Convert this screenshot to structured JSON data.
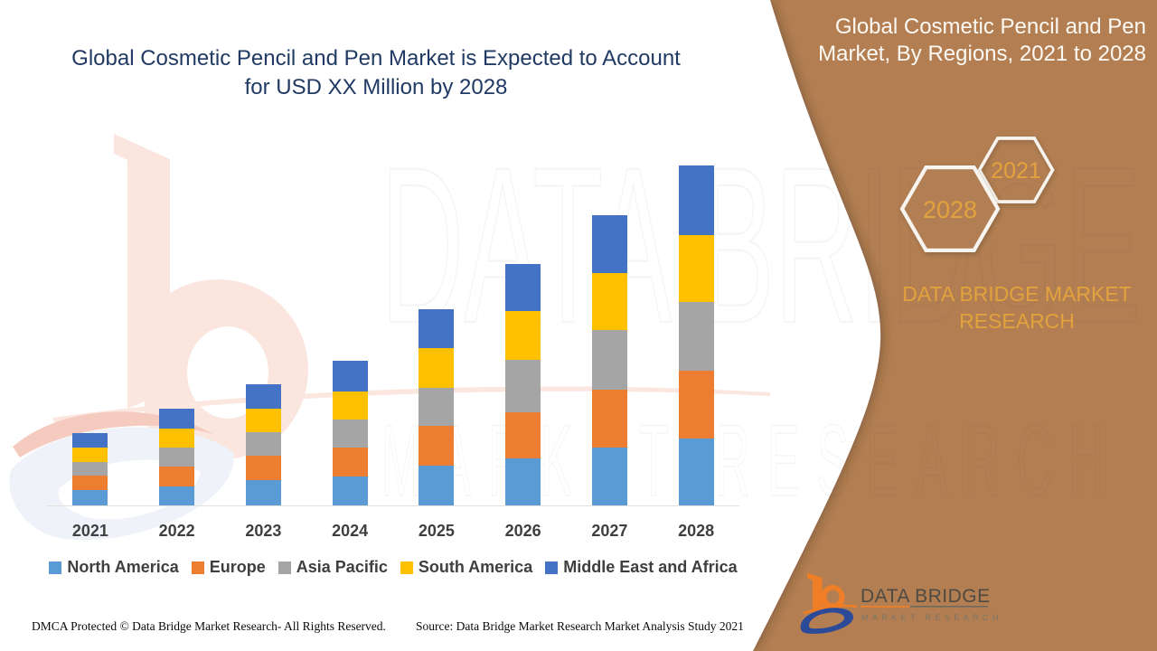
{
  "colors": {
    "panel_brown": "#B27E52",
    "title_blue": "#203A63",
    "gold": "#E2A23D",
    "axis_line": "#E3E0DD",
    "tick_text": "#3F3F3F",
    "logo_orange": "#F07E26",
    "logo_blue": "#2A4C9B"
  },
  "left_title": {
    "line1": "Global Cosmetic Pencil and Pen Market is Expected to Account",
    "line2": "for USD XX Million by 2028"
  },
  "panel": {
    "title_line1": "Global Cosmetic Pencil and Pen",
    "title_line2": "Market, By Regions, 2021 to 2028",
    "hexagon_back_label": "2021",
    "hexagon_front_label": "2028",
    "brand_line1": "DATA BRIDGE MARKET",
    "brand_line2": "RESEARCH"
  },
  "logo": {
    "name": "DATA BRIDGE",
    "tagline": "MARKET RESEARCH"
  },
  "watermark": {
    "row1": "DATA BRIDGE",
    "row2": "MARKET RESEARCH"
  },
  "footer": {
    "left": "DMCA Protected © Data Bridge Market Research- All Rights Reserved.",
    "right": "Source: Data Bridge Market Research Market Analysis Study 2021"
  },
  "chart_data": {
    "type": "bar",
    "stacked": true,
    "title": "Global Cosmetic Pencil and Pen Market, By Regions, 2021 to 2028",
    "xlabel": "",
    "ylabel": "",
    "y_axis_shown": false,
    "note": "values are relative units read from bar pixel heights; no value axis is displayed",
    "categories": [
      "2021",
      "2022",
      "2023",
      "2024",
      "2025",
      "2026",
      "2027",
      "2028"
    ],
    "series": [
      {
        "name": "North America",
        "color": "#5B9BD5",
        "values": [
          17,
          21.5,
          28.5,
          32,
          44,
          52.5,
          64,
          74.5
        ]
      },
      {
        "name": "Europe",
        "color": "#ED7D31",
        "values": [
          16,
          22,
          26.5,
          32,
          44.5,
          51,
          64,
          75
        ]
      },
      {
        "name": "Asia Pacific",
        "color": "#A5A5A5",
        "values": [
          15.5,
          21,
          26,
          31.5,
          41.5,
          58,
          66,
          76
        ]
      },
      {
        "name": "South America",
        "color": "#FFC000",
        "values": [
          16,
          21,
          26.5,
          31,
          44,
          53.5,
          63,
          74
        ]
      },
      {
        "name": "Middle East and Africa",
        "color": "#4472C4",
        "values": [
          15.5,
          21.5,
          27,
          34,
          43,
          52.5,
          64,
          76.5
        ]
      }
    ],
    "legend_position": "bottom",
    "grid": false
  }
}
